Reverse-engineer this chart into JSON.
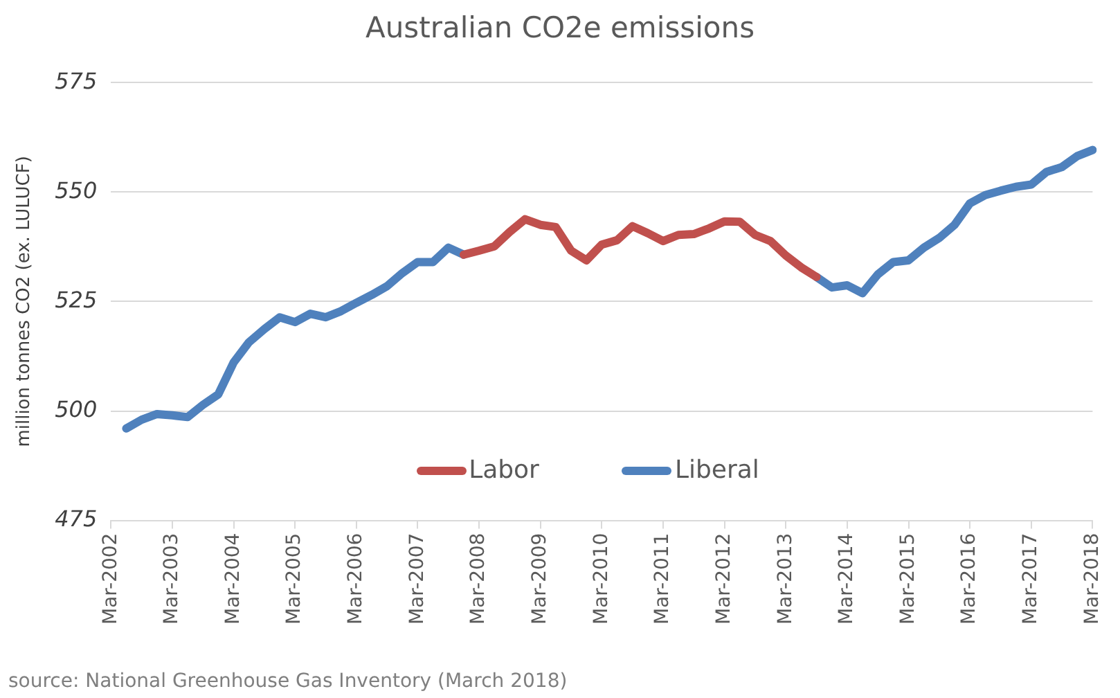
{
  "chart_data": {
    "type": "line",
    "title": "Australian CO2e emissions",
    "ylabel": "million tonnes CO2 (ex. LULUCF)",
    "categories": [
      "Mar-2002",
      null,
      null,
      null,
      "Mar-2003",
      null,
      null,
      null,
      "Mar-2004",
      null,
      null,
      null,
      "Mar-2005",
      null,
      null,
      null,
      "Mar-2006",
      null,
      null,
      null,
      "Mar-2007",
      null,
      null,
      null,
      "Mar-2008",
      null,
      null,
      null,
      "Mar-2009",
      null,
      null,
      null,
      "Mar-2010",
      null,
      null,
      null,
      "Mar-2011",
      null,
      null,
      null,
      "Mar-2012",
      null,
      null,
      null,
      "Mar-2013",
      null,
      null,
      null,
      "Mar-2014",
      null,
      null,
      null,
      "Mar-2015",
      null,
      null,
      null,
      "Mar-2016",
      null,
      null,
      null,
      "Mar-2017",
      null,
      null,
      null,
      "Mar-2018"
    ],
    "series": [
      {
        "name": "Labor",
        "color": "#c0504d",
        "values": [
          null,
          null,
          null,
          null,
          null,
          null,
          null,
          null,
          null,
          null,
          null,
          null,
          null,
          null,
          null,
          null,
          null,
          null,
          null,
          null,
          null,
          null,
          null,
          535.7,
          536.6,
          537.6,
          540.9,
          543.8,
          542.5,
          542,
          536.6,
          534.4,
          538,
          539,
          542.2,
          540.6,
          538.8,
          540.2,
          540.4,
          541.7,
          543.3,
          543.2,
          540.2,
          538.8,
          535.5,
          532.8,
          530.6,
          null,
          null,
          null,
          null,
          null,
          null,
          null,
          null,
          null,
          null,
          null,
          null,
          null,
          null,
          null,
          null,
          null,
          null
        ]
      },
      {
        "name": "Liberal",
        "color": "#4f81bd",
        "values": [
          null,
          496,
          498,
          499.3,
          499,
          498.6,
          501.4,
          503.8,
          511.1,
          515.7,
          518.7,
          521.4,
          520.3,
          522.2,
          521.4,
          522.8,
          524.7,
          526.5,
          528.5,
          531.5,
          534,
          534,
          537.3,
          535.7,
          null,
          null,
          null,
          null,
          null,
          null,
          null,
          null,
          null,
          null,
          null,
          null,
          null,
          null,
          null,
          null,
          null,
          null,
          null,
          null,
          null,
          null,
          530.6,
          528.2,
          528.7,
          526.9,
          531.2,
          534,
          534.4,
          537.3,
          539.5,
          542.5,
          547.4,
          549.3,
          550.3,
          551.2,
          551.7,
          554.6,
          555.7,
          558.2,
          559.6
        ]
      }
    ],
    "ylim": [
      475,
      575
    ],
    "yticks": [
      475,
      500,
      525,
      550,
      575
    ],
    "grid": "y",
    "legend": "bottom",
    "marker": "none",
    "line_style": "solid",
    "annotations": [
      "source: National Greenhouse Gas Inventory (March 2018)"
    ]
  }
}
